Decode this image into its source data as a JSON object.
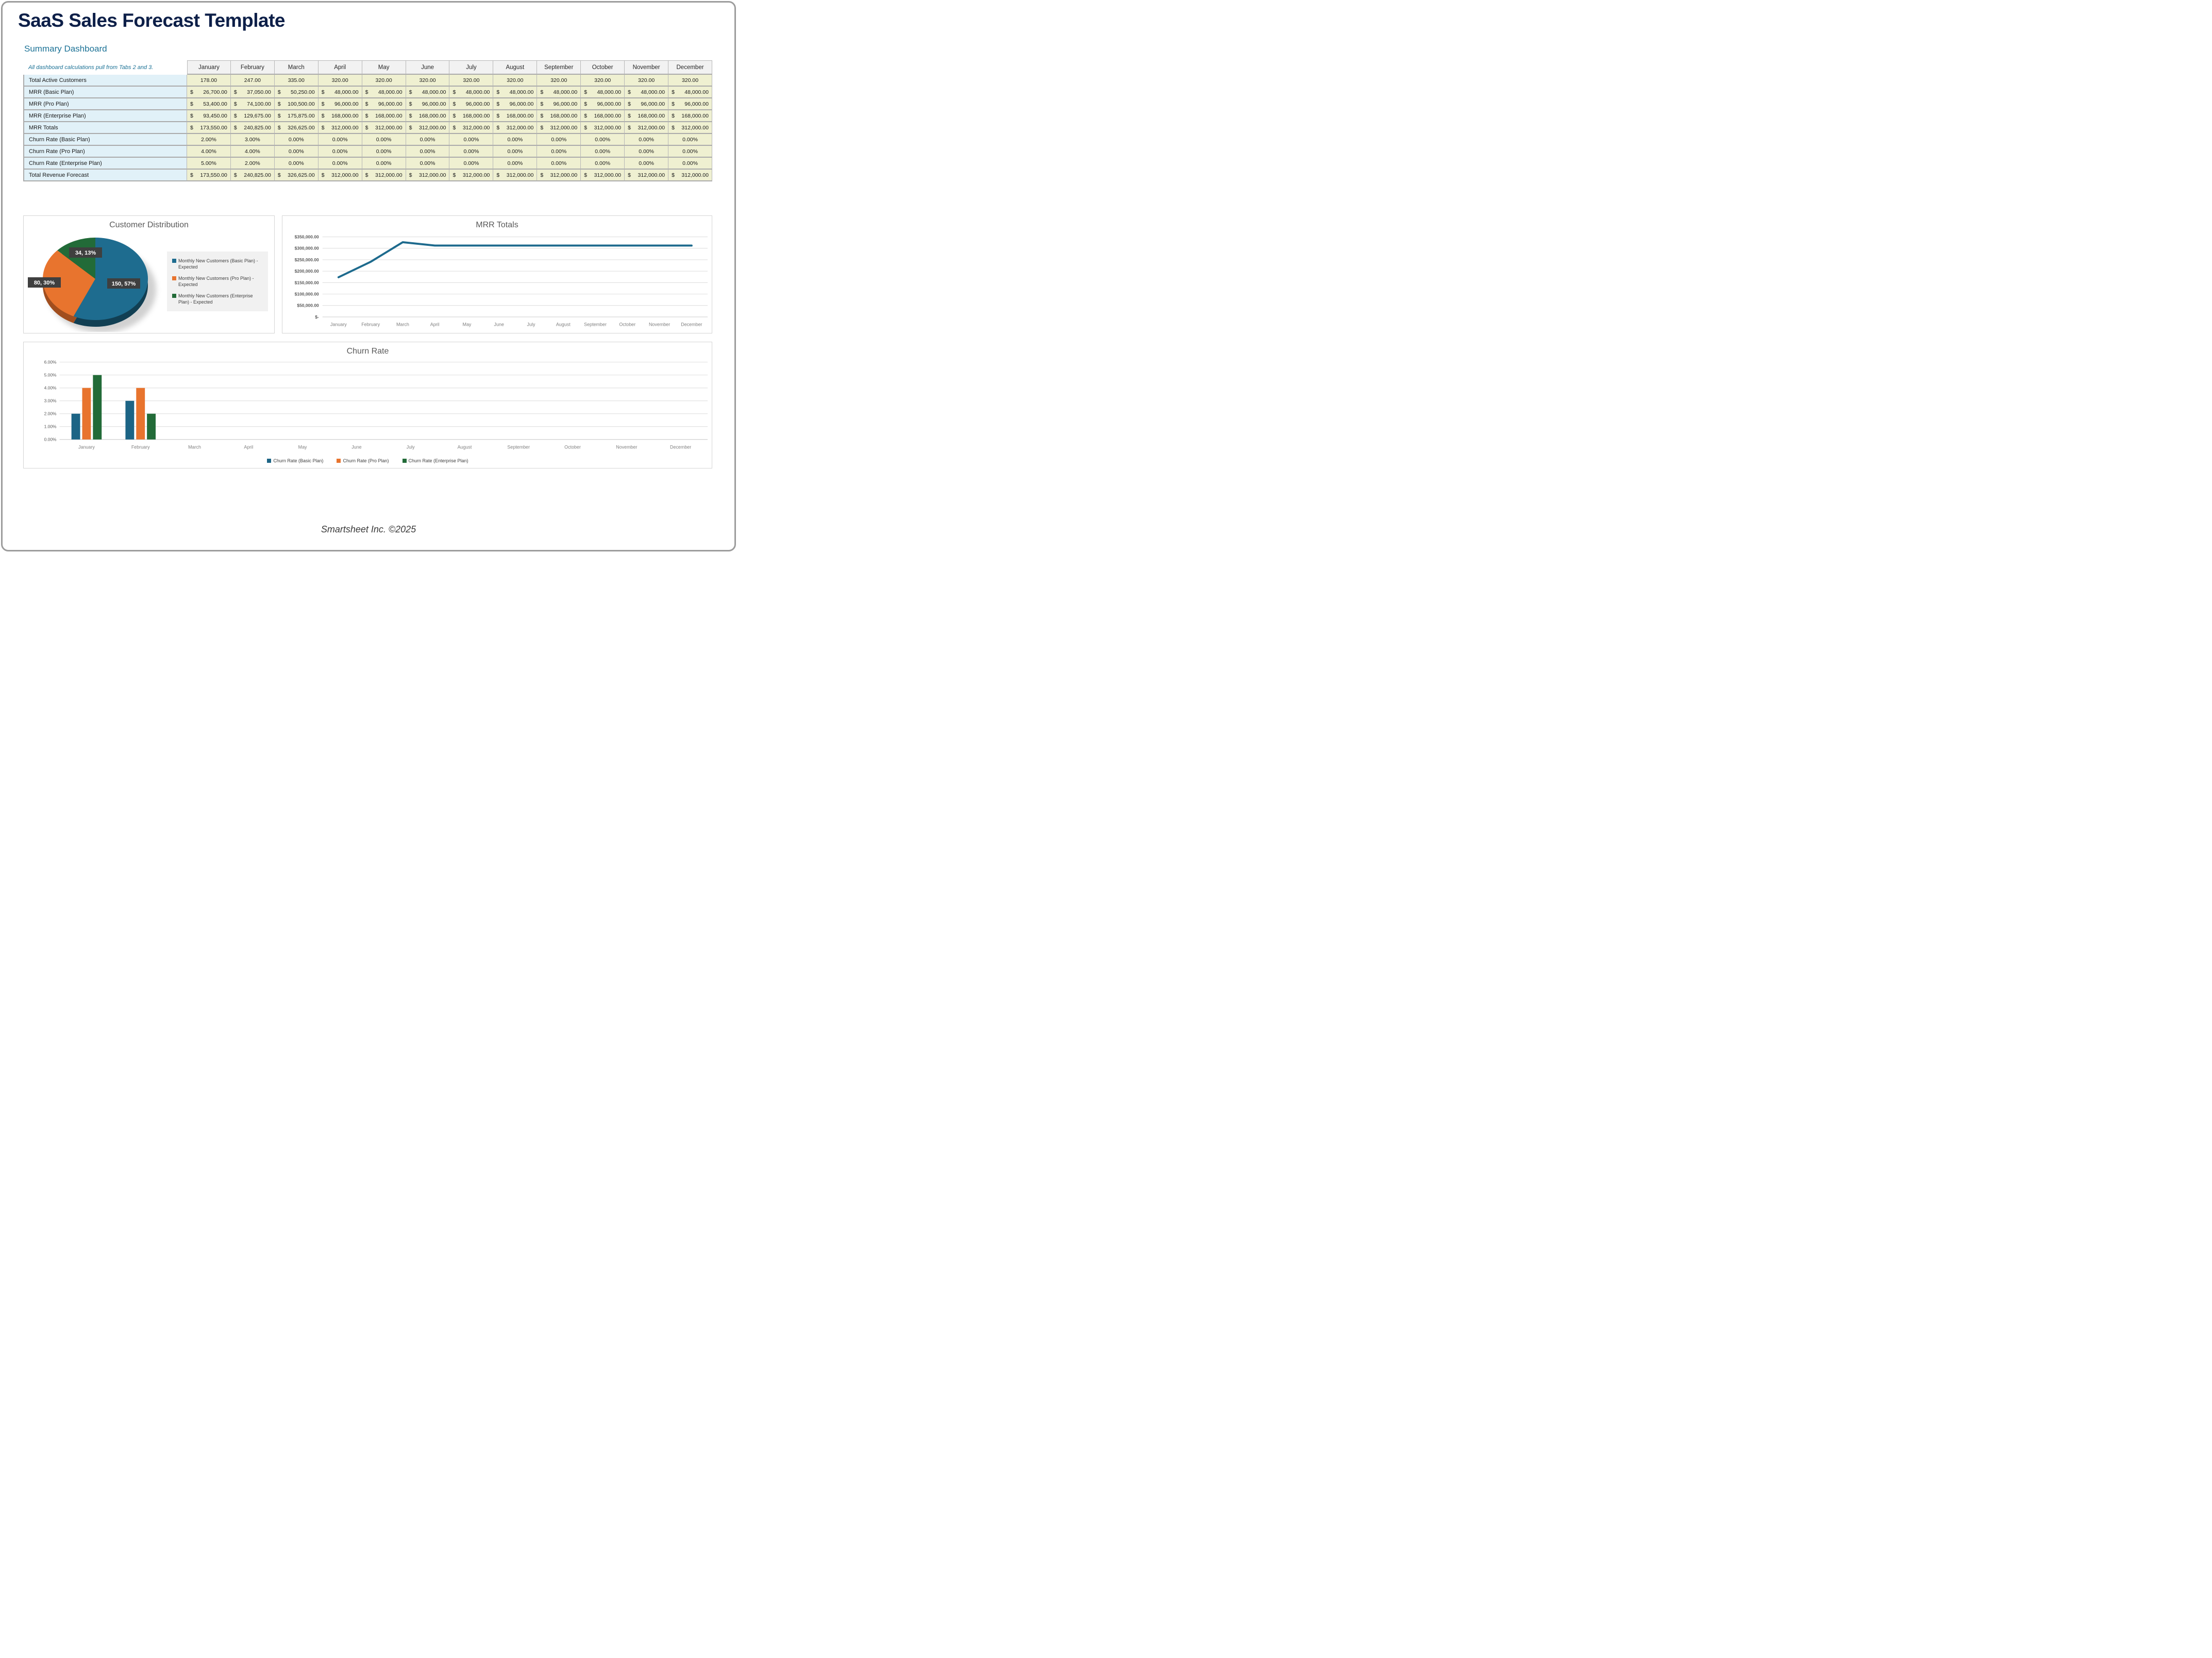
{
  "page": {
    "title": "SaaS Sales Forecast Template",
    "section_heading": "Summary Dashboard",
    "footer": "Smartsheet Inc. ©2025"
  },
  "table": {
    "note": "All dashboard calculations pull from Tabs 2 and 3.",
    "months": [
      "January",
      "February",
      "March",
      "April",
      "May",
      "June",
      "July",
      "August",
      "September",
      "October",
      "November",
      "December"
    ],
    "rows": [
      {
        "label": "Total Active Customers",
        "format": "number",
        "values": [
          "178.00",
          "247.00",
          "335.00",
          "320.00",
          "320.00",
          "320.00",
          "320.00",
          "320.00",
          "320.00",
          "320.00",
          "320.00",
          "320.00"
        ]
      },
      {
        "label": "MRR (Basic Plan)",
        "format": "currency",
        "values": [
          "26,700.00",
          "37,050.00",
          "50,250.00",
          "48,000.00",
          "48,000.00",
          "48,000.00",
          "48,000.00",
          "48,000.00",
          "48,000.00",
          "48,000.00",
          "48,000.00",
          "48,000.00"
        ]
      },
      {
        "label": "MRR (Pro Plan)",
        "format": "currency",
        "values": [
          "53,400.00",
          "74,100.00",
          "100,500.00",
          "96,000.00",
          "96,000.00",
          "96,000.00",
          "96,000.00",
          "96,000.00",
          "96,000.00",
          "96,000.00",
          "96,000.00",
          "96,000.00"
        ]
      },
      {
        "label": "MRR (Enterprise Plan)",
        "format": "currency",
        "values": [
          "93,450.00",
          "129,675.00",
          "175,875.00",
          "168,000.00",
          "168,000.00",
          "168,000.00",
          "168,000.00",
          "168,000.00",
          "168,000.00",
          "168,000.00",
          "168,000.00",
          "168,000.00"
        ]
      },
      {
        "label": "MRR Totals",
        "format": "currency",
        "values": [
          "173,550.00",
          "240,825.00",
          "326,625.00",
          "312,000.00",
          "312,000.00",
          "312,000.00",
          "312,000.00",
          "312,000.00",
          "312,000.00",
          "312,000.00",
          "312,000.00",
          "312,000.00"
        ]
      },
      {
        "label": "Churn Rate (Basic Plan)",
        "format": "percent",
        "values": [
          "2.00%",
          "3.00%",
          "0.00%",
          "0.00%",
          "0.00%",
          "0.00%",
          "0.00%",
          "0.00%",
          "0.00%",
          "0.00%",
          "0.00%",
          "0.00%"
        ]
      },
      {
        "label": "Churn Rate (Pro Plan)",
        "format": "percent",
        "values": [
          "4.00%",
          "4.00%",
          "0.00%",
          "0.00%",
          "0.00%",
          "0.00%",
          "0.00%",
          "0.00%",
          "0.00%",
          "0.00%",
          "0.00%",
          "0.00%"
        ]
      },
      {
        "label": "Churn Rate (Enterprise Plan)",
        "format": "percent",
        "values": [
          "5.00%",
          "2.00%",
          "0.00%",
          "0.00%",
          "0.00%",
          "0.00%",
          "0.00%",
          "0.00%",
          "0.00%",
          "0.00%",
          "0.00%",
          "0.00%"
        ]
      },
      {
        "label": "Total Revenue Forecast",
        "format": "currency",
        "values": [
          "173,550.00",
          "240,825.00",
          "326,625.00",
          "312,000.00",
          "312,000.00",
          "312,000.00",
          "312,000.00",
          "312,000.00",
          "312,000.00",
          "312,000.00",
          "312,000.00",
          "312,000.00"
        ]
      }
    ]
  },
  "chart_data": [
    {
      "type": "pie",
      "title": "Customer Distribution",
      "labels": [
        "Monthly New Customers (Basic Plan) - Expected",
        "Monthly New Customers (Pro Plan) - Expected",
        "Monthly New Customers (Enterprise Plan) - Expected"
      ],
      "values": [
        150,
        80,
        34
      ],
      "percents": [
        57,
        30,
        13
      ],
      "data_labels": [
        "150, 57%",
        "80, 30%",
        "34, 13%"
      ],
      "colors": [
        "#1e6c8f",
        "#e8742e",
        "#226b38"
      ],
      "rim_colors": [
        "#113f53",
        "#a14e1e",
        "#123e21"
      ],
      "legend_position": "right",
      "start_angle_deg": 0,
      "direction": "clockwise"
    },
    {
      "type": "line",
      "title": "MRR Totals",
      "categories": [
        "January",
        "February",
        "March",
        "April",
        "May",
        "June",
        "July",
        "August",
        "September",
        "October",
        "November",
        "December"
      ],
      "values": [
        173550,
        240825,
        326625,
        312000,
        312000,
        312000,
        312000,
        312000,
        312000,
        312000,
        312000,
        312000
      ],
      "ylim": [
        0,
        350000
      ],
      "ytick_labels_desc": [
        "$350,000.00",
        "$300,000.00",
        "$250,000.00",
        "$200,000.00",
        "$150,000.00",
        "$100,000.00",
        "$50,000.00",
        "$-"
      ],
      "color": "#1d6a8d",
      "grid": true,
      "legend_position": "none"
    },
    {
      "type": "bar",
      "title": "Churn Rate",
      "categories": [
        "January",
        "February",
        "March",
        "April",
        "May",
        "June",
        "July",
        "August",
        "September",
        "October",
        "November",
        "December"
      ],
      "series": [
        {
          "name": "Churn Rate (Basic Plan)",
          "color": "#1c6485",
          "values": [
            2,
            3,
            0,
            0,
            0,
            0,
            0,
            0,
            0,
            0,
            0,
            0
          ]
        },
        {
          "name": "Churn Rate (Pro Plan)",
          "color": "#e8742e",
          "values": [
            4,
            4,
            0,
            0,
            0,
            0,
            0,
            0,
            0,
            0,
            0,
            0
          ]
        },
        {
          "name": "Churn Rate (Enterprise Plan)",
          "color": "#226b38",
          "values": [
            5,
            2,
            0,
            0,
            0,
            0,
            0,
            0,
            0,
            0,
            0,
            0
          ]
        }
      ],
      "ylim": [
        0,
        6
      ],
      "ytick_labels_desc": [
        "6.00%",
        "5.00%",
        "4.00%",
        "3.00%",
        "2.00%",
        "1.00%",
        "0.00%"
      ],
      "grid": true,
      "legend_position": "bottom"
    }
  ]
}
